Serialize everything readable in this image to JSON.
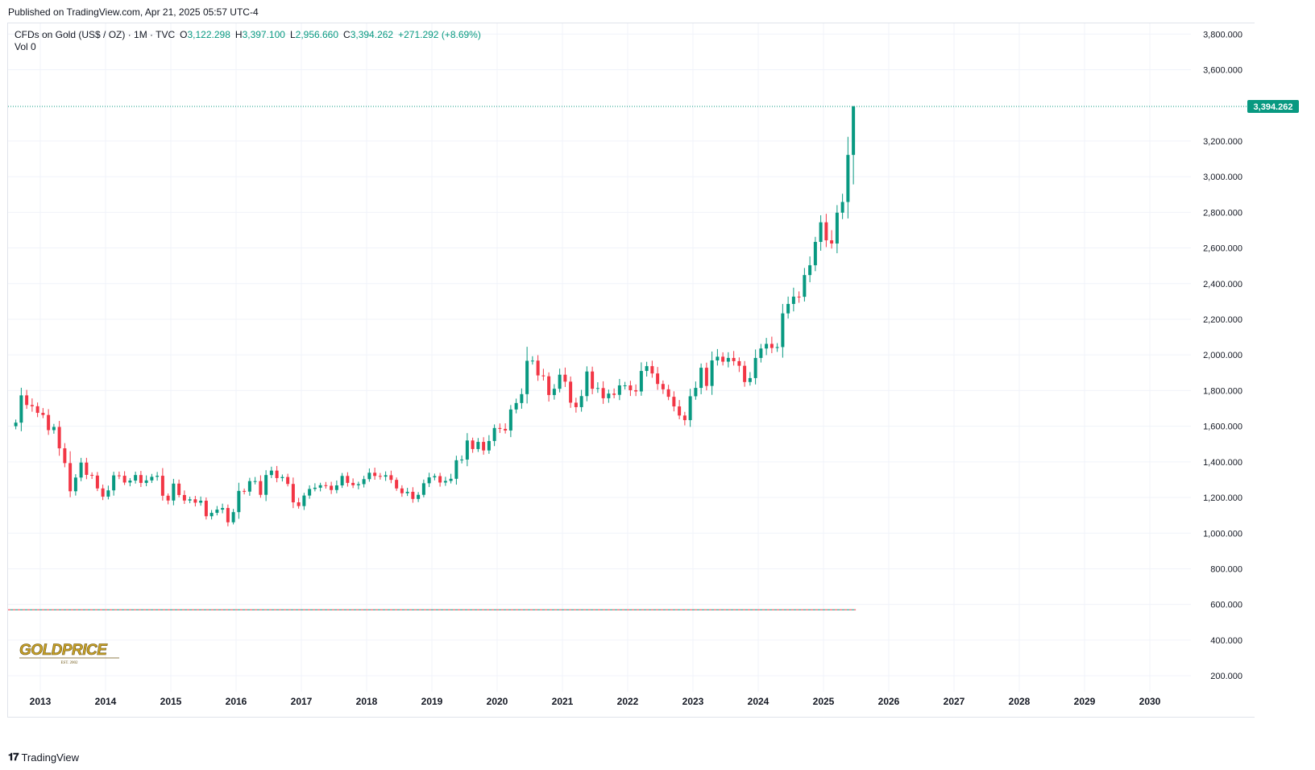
{
  "header": {
    "published_text": "Published on TradingView.com, Apr 21, 2025 05:57 UTC-4"
  },
  "legend": {
    "symbol": "CFDs on Gold (US$ / OZ) · 1M · TVC",
    "open_label": "O",
    "open_value": "3,122.298",
    "high_label": "H",
    "high_value": "3,397.100",
    "low_label": "L",
    "low_value": "2,956.660",
    "close_label": "C",
    "close_value": "3,394.262",
    "change": "+271.292 (+8.69%)",
    "vol_label": "Vol",
    "vol_value": "0"
  },
  "price_tag": "3,394.262",
  "footer": {
    "brand": "TradingView"
  },
  "watermark": {
    "brand": "GOLDPRICE",
    "tagline": "EST. 2002"
  },
  "colors": {
    "up": "#089981",
    "down": "#f23645",
    "grid": "#f0f3fa",
    "text": "#131722"
  },
  "chart_data": {
    "type": "candlestick",
    "interval": "1M",
    "y_axis_side": "right",
    "ylim": [
      110,
      3860
    ],
    "y_ticks": [
      "200.000",
      "400.000",
      "600.000",
      "800.000",
      "1,000.000",
      "1,200.000",
      "1,400.000",
      "1,600.000",
      "1,800.000",
      "2,000.000",
      "2,200.000",
      "2,400.000",
      "2,600.000",
      "2,800.000",
      "3,000.000",
      "3,200.000",
      "3,600.000",
      "3,800.000"
    ],
    "x_ticks": [
      "2013",
      "2014",
      "2015",
      "2016",
      "2017",
      "2018",
      "2019",
      "2020",
      "2021",
      "2022",
      "2023",
      "2024",
      "2025",
      "2026",
      "2027",
      "2028",
      "2029",
      "2030"
    ],
    "last_price": 3394.262,
    "reference_level": 570,
    "grid": true,
    "monthly_closes_from_2012_08": [
      1620,
      1773,
      1719,
      1712,
      1675,
      1663,
      1578,
      1596,
      1476,
      1393,
      1235,
      1312,
      1396,
      1327,
      1323,
      1251,
      1205,
      1240,
      1324,
      1322,
      1284,
      1295,
      1326,
      1282,
      1296,
      1316,
      1322,
      1210,
      1183,
      1278,
      1214,
      1183,
      1190,
      1171,
      1182,
      1095,
      1114,
      1132,
      1141,
      1061,
      1118,
      1237,
      1233,
      1292,
      1292,
      1215,
      1326,
      1351,
      1309,
      1315,
      1276,
      1173,
      1152,
      1211,
      1248,
      1255,
      1269,
      1266,
      1242,
      1268,
      1321,
      1282,
      1269,
      1275,
      1303,
      1339,
      1321,
      1317,
      1325,
      1299,
      1251,
      1224,
      1232,
      1192,
      1215,
      1280,
      1313,
      1320,
      1284,
      1293,
      1305,
      1409,
      1413,
      1520,
      1472,
      1512,
      1464,
      1517,
      1590,
      1585,
      1576,
      1694,
      1730,
      1780,
      1967,
      1968,
      1885,
      1880,
      1775,
      1810,
      1889,
      1850,
      1732,
      1707,
      1769,
      1907,
      1810,
      1814,
      1757,
      1783,
      1776,
      1829,
      1829,
      1802,
      1795,
      1910,
      1937,
      1896,
      1837,
      1807,
      1765,
      1711,
      1660,
      1634,
      1768,
      1815,
      1928,
      1826,
      1969,
      1990,
      1962,
      1983,
      1965,
      1939,
      1848,
      1870,
      1983,
      2036,
      2062,
      2039,
      2044,
      2233,
      2286,
      2327,
      2326,
      2448,
      2503,
      2634,
      2744,
      2643,
      2625,
      2798,
      2858,
      3122,
      3394
    ]
  }
}
